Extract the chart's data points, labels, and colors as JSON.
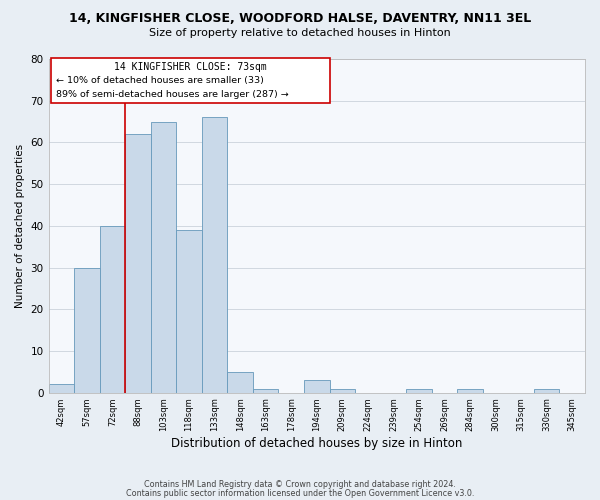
{
  "title": "14, KINGFISHER CLOSE, WOODFORD HALSE, DAVENTRY, NN11 3EL",
  "subtitle": "Size of property relative to detached houses in Hinton",
  "xlabel": "Distribution of detached houses by size in Hinton",
  "ylabel": "Number of detached properties",
  "bar_labels": [
    "42sqm",
    "57sqm",
    "72sqm",
    "88sqm",
    "103sqm",
    "118sqm",
    "133sqm",
    "148sqm",
    "163sqm",
    "178sqm",
    "194sqm",
    "209sqm",
    "224sqm",
    "239sqm",
    "254sqm",
    "269sqm",
    "284sqm",
    "300sqm",
    "315sqm",
    "330sqm",
    "345sqm"
  ],
  "bar_heights": [
    2,
    30,
    40,
    62,
    65,
    39,
    66,
    5,
    1,
    0,
    3,
    1,
    0,
    0,
    1,
    0,
    1,
    0,
    0,
    1,
    0
  ],
  "bar_color": "#c9d9e9",
  "bar_edge_color": "#6699bb",
  "line_color": "#cc0000",
  "property_label": "14 KINGFISHER CLOSE: 73sqm",
  "annotation_smaller": "← 10% of detached houses are smaller (33)",
  "annotation_larger": "89% of semi-detached houses are larger (287) →",
  "box_edge_color": "#cc0000",
  "ylim": [
    0,
    80
  ],
  "yticks": [
    0,
    10,
    20,
    30,
    40,
    50,
    60,
    70,
    80
  ],
  "footer1": "Contains HM Land Registry data © Crown copyright and database right 2024.",
  "footer2": "Contains public sector information licensed under the Open Government Licence v3.0.",
  "bg_color": "#e8eef4",
  "plot_bg_color": "#f5f8fc",
  "grid_color": "#d0d8e0"
}
